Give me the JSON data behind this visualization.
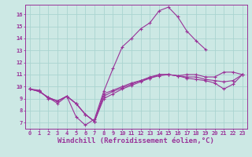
{
  "background_color": "#cce8e4",
  "grid_color": "#aad4d0",
  "line_color": "#993399",
  "xlabel": "Windchill (Refroidissement éolien,°C)",
  "xlabel_fontsize": 6.5,
  "ylim": [
    6.5,
    16.8
  ],
  "xlim": [
    -0.5,
    23.5
  ],
  "yticks": [
    7,
    8,
    9,
    10,
    11,
    12,
    13,
    14,
    15,
    16
  ],
  "xticks": [
    0,
    1,
    2,
    3,
    4,
    5,
    6,
    7,
    8,
    9,
    10,
    11,
    12,
    13,
    14,
    15,
    16,
    17,
    18,
    19,
    20,
    21,
    22,
    23
  ],
  "series": [
    [
      9.8,
      9.7,
      9.0,
      8.8,
      9.2,
      7.5,
      6.8,
      7.3,
      9.6,
      11.5,
      13.3,
      14.0,
      14.8,
      15.3,
      16.3,
      16.6,
      15.8,
      14.6,
      13.8,
      13.1,
      null,
      null,
      null,
      null
    ],
    [
      9.8,
      9.6,
      9.1,
      8.6,
      9.2,
      8.6,
      7.7,
      7.1,
      9.0,
      9.4,
      9.8,
      10.1,
      10.4,
      10.7,
      11.0,
      11.0,
      10.9,
      11.0,
      11.0,
      10.8,
      10.8,
      11.2,
      11.2,
      11.0
    ],
    [
      9.8,
      9.6,
      9.1,
      8.8,
      9.2,
      8.6,
      7.7,
      7.1,
      9.2,
      9.6,
      9.9,
      10.2,
      10.5,
      10.7,
      10.9,
      11.0,
      10.9,
      10.8,
      10.8,
      10.6,
      10.5,
      10.4,
      10.5,
      11.0
    ],
    [
      9.8,
      9.6,
      9.1,
      8.8,
      9.2,
      8.6,
      7.7,
      7.1,
      9.4,
      9.7,
      10.0,
      10.3,
      10.5,
      10.8,
      11.0,
      11.0,
      10.9,
      10.7,
      10.6,
      10.5,
      10.3,
      9.8,
      10.2,
      11.0
    ]
  ]
}
